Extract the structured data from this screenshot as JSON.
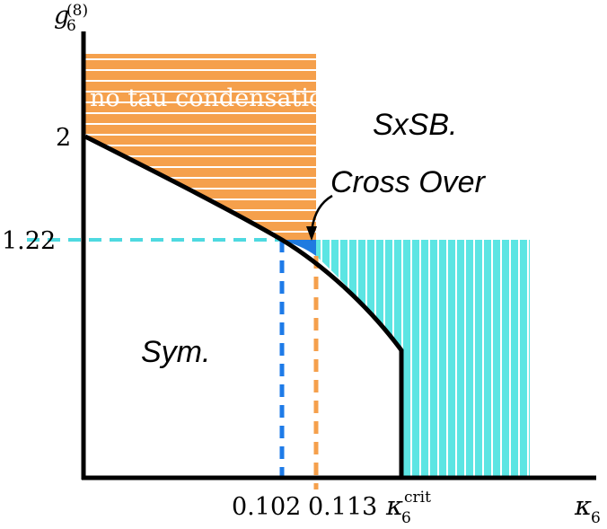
{
  "axes": {
    "y_label_base": "g",
    "y_label_sub": "6",
    "y_label_sup": "(8)",
    "x_label_base": "κ",
    "x_label_sub": "6"
  },
  "y_ticks": {
    "upper": "2",
    "lower": "1.22"
  },
  "x_ticks": {
    "first": "0.102",
    "second": "0.113",
    "crit_base": "κ",
    "crit_sub": "6",
    "crit_sup": "crit"
  },
  "regions": {
    "no_tau": "no tau condensation",
    "sxsb": "SxSB.",
    "cross_over": "Cross Over",
    "sym": "Sym."
  },
  "colors": {
    "orange": "#F5A04C",
    "cyan": "#5CE5E3",
    "blue_dash": "#1E7BE8",
    "cyan_dash": "#4ED9E0",
    "orange_dash": "#F5A04C",
    "overlap": "#1F7BE0"
  }
}
